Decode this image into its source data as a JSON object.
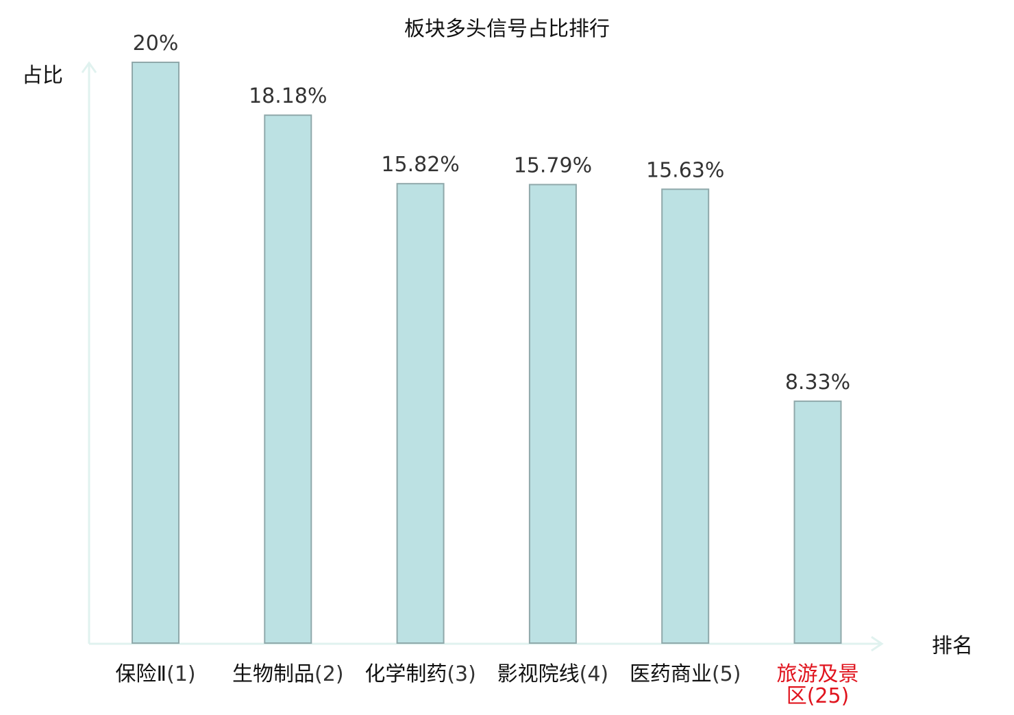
{
  "chart_data": {
    "type": "bar",
    "title": "板块多头信号占比排行",
    "ylabel": "占比",
    "xlabel": "排名",
    "ylim": [
      0,
      20
    ],
    "grid": false,
    "categories": [
      {
        "name": "保险Ⅱ",
        "rank": "(1)",
        "highlight": false
      },
      {
        "name": "生物制品",
        "rank": "(2)",
        "highlight": false
      },
      {
        "name": "化学制药",
        "rank": "(3)",
        "highlight": false
      },
      {
        "name": "影视院线",
        "rank": "(4)",
        "highlight": false
      },
      {
        "name": "医药商业",
        "rank": "(5)",
        "highlight": false
      },
      {
        "name": "旅游及景\n区",
        "rank": "(25)",
        "highlight": true
      }
    ],
    "values": [
      20,
      18.18,
      15.82,
      15.79,
      15.63,
      8.33
    ],
    "value_labels": [
      "20%",
      "18.18%",
      "15.82%",
      "15.79%",
      "15.63%",
      "8.33%"
    ]
  },
  "colors": {
    "bar_fill": "#bce1e3",
    "bar_stroke": "#8fa8aa",
    "axis": "#e0f2ef",
    "text": "#333333",
    "label_text": "#111111",
    "highlight_text": "#e0141e"
  }
}
